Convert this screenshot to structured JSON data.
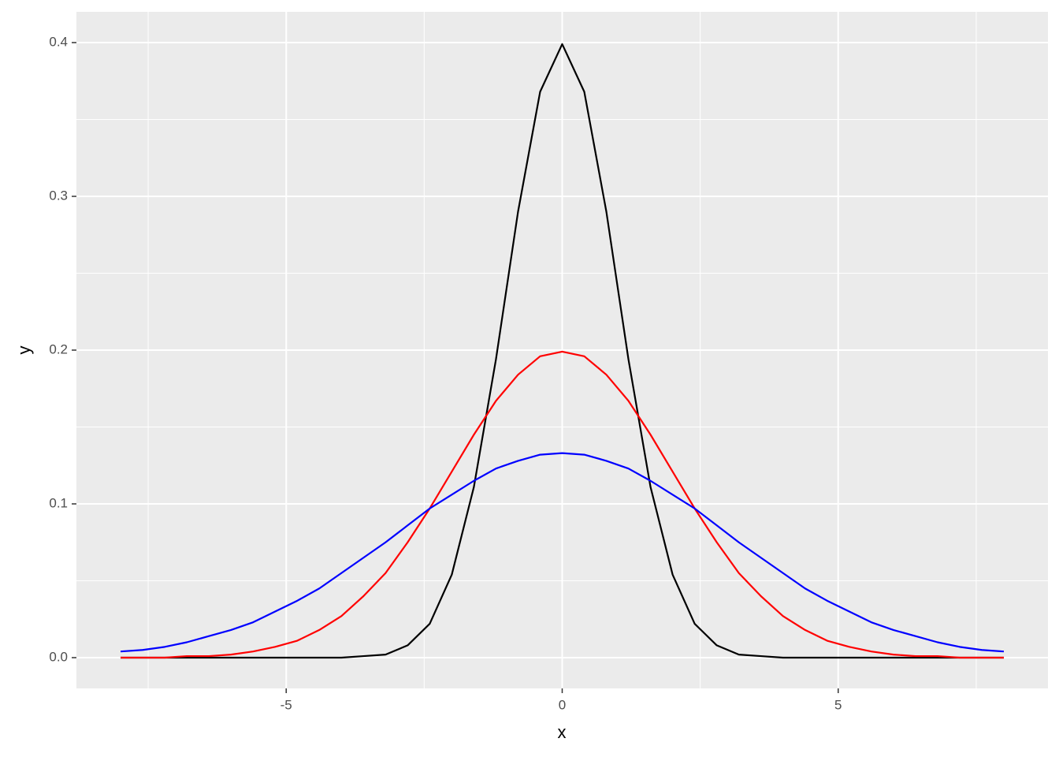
{
  "chart_data": {
    "type": "line",
    "x_label": "x",
    "y_label": "y",
    "x": [
      -8,
      -7.6,
      -7.2,
      -6.8,
      -6.4,
      -6,
      -5.6,
      -5.2,
      -4.8,
      -4.4,
      -4,
      -3.6,
      -3.2,
      -2.8,
      -2.4,
      -2,
      -1.6,
      -1.2,
      -0.8,
      -0.4,
      0,
      0.4,
      0.8,
      1.2,
      1.6,
      2,
      2.4,
      2.8,
      3.2,
      3.6,
      4,
      4.4,
      4.8,
      5.2,
      5.6,
      6,
      6.4,
      6.8,
      7.2,
      7.6,
      8
    ],
    "series": [
      {
        "color": "#000000",
        "values": [
          0,
          0,
          0,
          0,
          0,
          0,
          0,
          0,
          0,
          0,
          0,
          0.001,
          0.002,
          0.008,
          0.022,
          0.054,
          0.111,
          0.194,
          0.29,
          0.368,
          0.399,
          0.368,
          0.29,
          0.194,
          0.111,
          0.054,
          0.022,
          0.008,
          0.002,
          0.001,
          0,
          0,
          0,
          0,
          0,
          0,
          0,
          0,
          0,
          0,
          0
        ]
      },
      {
        "color": "#ff0000",
        "values": [
          0,
          0,
          0,
          0.001,
          0.001,
          0.002,
          0.004,
          0.007,
          0.011,
          0.018,
          0.027,
          0.04,
          0.055,
          0.075,
          0.097,
          0.121,
          0.145,
          0.167,
          0.184,
          0.196,
          0.199,
          0.196,
          0.184,
          0.167,
          0.145,
          0.121,
          0.097,
          0.075,
          0.055,
          0.04,
          0.027,
          0.018,
          0.011,
          0.007,
          0.004,
          0.002,
          0.001,
          0.001,
          0,
          0,
          0
        ]
      },
      {
        "color": "#0000ff",
        "values": [
          0.004,
          0.005,
          0.007,
          0.01,
          0.014,
          0.018,
          0.023,
          0.03,
          0.037,
          0.045,
          0.055,
          0.065,
          0.075,
          0.086,
          0.097,
          0.106,
          0.115,
          0.123,
          0.128,
          0.132,
          0.133,
          0.132,
          0.128,
          0.123,
          0.115,
          0.106,
          0.097,
          0.086,
          0.075,
          0.065,
          0.055,
          0.045,
          0.037,
          0.03,
          0.023,
          0.018,
          0.014,
          0.01,
          0.007,
          0.005,
          0.004
        ]
      }
    ],
    "xlim": [
      -8.8,
      8.8
    ],
    "xticks": [
      -5,
      0,
      5
    ],
    "ylim": [
      -0.02,
      0.42
    ],
    "yticks": [
      {
        "value": 0,
        "label": "0.0"
      },
      0.1,
      0.2,
      0.3,
      0.4
    ],
    "grid": true
  }
}
